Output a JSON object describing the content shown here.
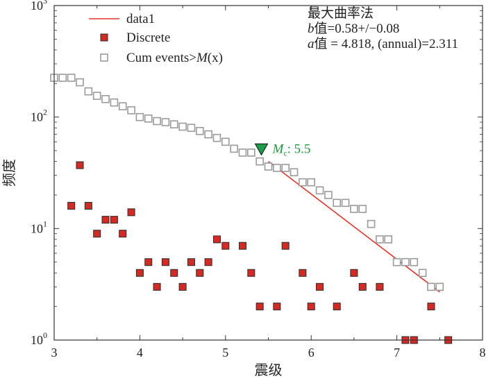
{
  "chart_data": {
    "type": "scatter",
    "xlabel": "震级",
    "ylabel": "频度",
    "xlim": [
      3,
      8
    ],
    "ylim": [
      1,
      1000
    ],
    "yscale": "log",
    "grid": false,
    "legend_position": "top-left",
    "x_ticks": [
      "3",
      "4",
      "5",
      "6",
      "7",
      "8"
    ],
    "y_ticks": [
      {
        "base": "10",
        "exp": "0"
      },
      {
        "base": "10",
        "exp": "1"
      },
      {
        "base": "10",
        "exp": "2"
      },
      {
        "base": "10",
        "exp": "3"
      }
    ],
    "legend": {
      "line": "data1",
      "discrete": "Discrete",
      "cum_prefix": "Cum events>",
      "cum_var": "M",
      "cum_arg": "(x)"
    },
    "annotation": {
      "method": "最大曲率法",
      "b_var": "b",
      "b_text": "值=0.58+/−0.08",
      "a_var": "a",
      "a_text": "值 = 4.818, (annual)=2.311"
    },
    "mc_label": {
      "var": "M",
      "sub": "c",
      "text": ": 5.5",
      "x": 5.5,
      "y": 52
    },
    "colors": {
      "fit_line": "#e8322a",
      "discrete_fill": "#d42a24",
      "discrete_edge": "#2a2a2a",
      "cum_edge": "#9a9a9a",
      "mc_marker": "#1aa04a",
      "mc_text": "#1a9a3c"
    },
    "series": [
      {
        "name": "data1",
        "kind": "line",
        "x": [
          5.5,
          7.5
        ],
        "y": [
          40,
          2.7
        ]
      },
      {
        "name": "Discrete",
        "kind": "marker",
        "x": [
          3.2,
          3.3,
          3.4,
          3.5,
          3.6,
          3.7,
          3.8,
          3.9,
          4.0,
          4.1,
          4.2,
          4.3,
          4.4,
          4.5,
          4.6,
          4.7,
          4.8,
          4.9,
          5.0,
          5.2,
          5.3,
          5.4,
          5.6,
          5.7,
          5.9,
          6.0,
          6.1,
          6.3,
          6.5,
          6.6,
          6.8,
          7.1,
          7.2,
          7.4,
          7.6
        ],
        "y": [
          16,
          37,
          16,
          9,
          12,
          12,
          9,
          14,
          4,
          5,
          3,
          5,
          4,
          3,
          5,
          4,
          5,
          8,
          7,
          7,
          4,
          2,
          2,
          7,
          4,
          2,
          3,
          2,
          4,
          3,
          3,
          1,
          1,
          2,
          1
        ]
      },
      {
        "name": "Cum events>M(x)",
        "kind": "marker",
        "x": [
          3.0,
          3.1,
          3.2,
          3.3,
          3.4,
          3.5,
          3.6,
          3.7,
          3.8,
          3.9,
          4.0,
          4.1,
          4.2,
          4.3,
          4.4,
          4.5,
          4.6,
          4.7,
          4.8,
          4.9,
          5.0,
          5.1,
          5.2,
          5.3,
          5.4,
          5.5,
          5.6,
          5.7,
          5.8,
          5.9,
          6.0,
          6.1,
          6.2,
          6.3,
          6.4,
          6.5,
          6.6,
          6.7,
          6.8,
          6.9,
          7.0,
          7.1,
          7.2,
          7.3,
          7.4,
          7.5
        ],
        "y": [
          225,
          225,
          225,
          205,
          170,
          155,
          145,
          135,
          125,
          115,
          100,
          97,
          92,
          90,
          86,
          82,
          80,
          75,
          70,
          65,
          60,
          52,
          48,
          48,
          40,
          36,
          35,
          35,
          32,
          26,
          26,
          22,
          20,
          17,
          17,
          15,
          15,
          11,
          8,
          8,
          5,
          5,
          5,
          4,
          3,
          3
        ]
      }
    ]
  }
}
